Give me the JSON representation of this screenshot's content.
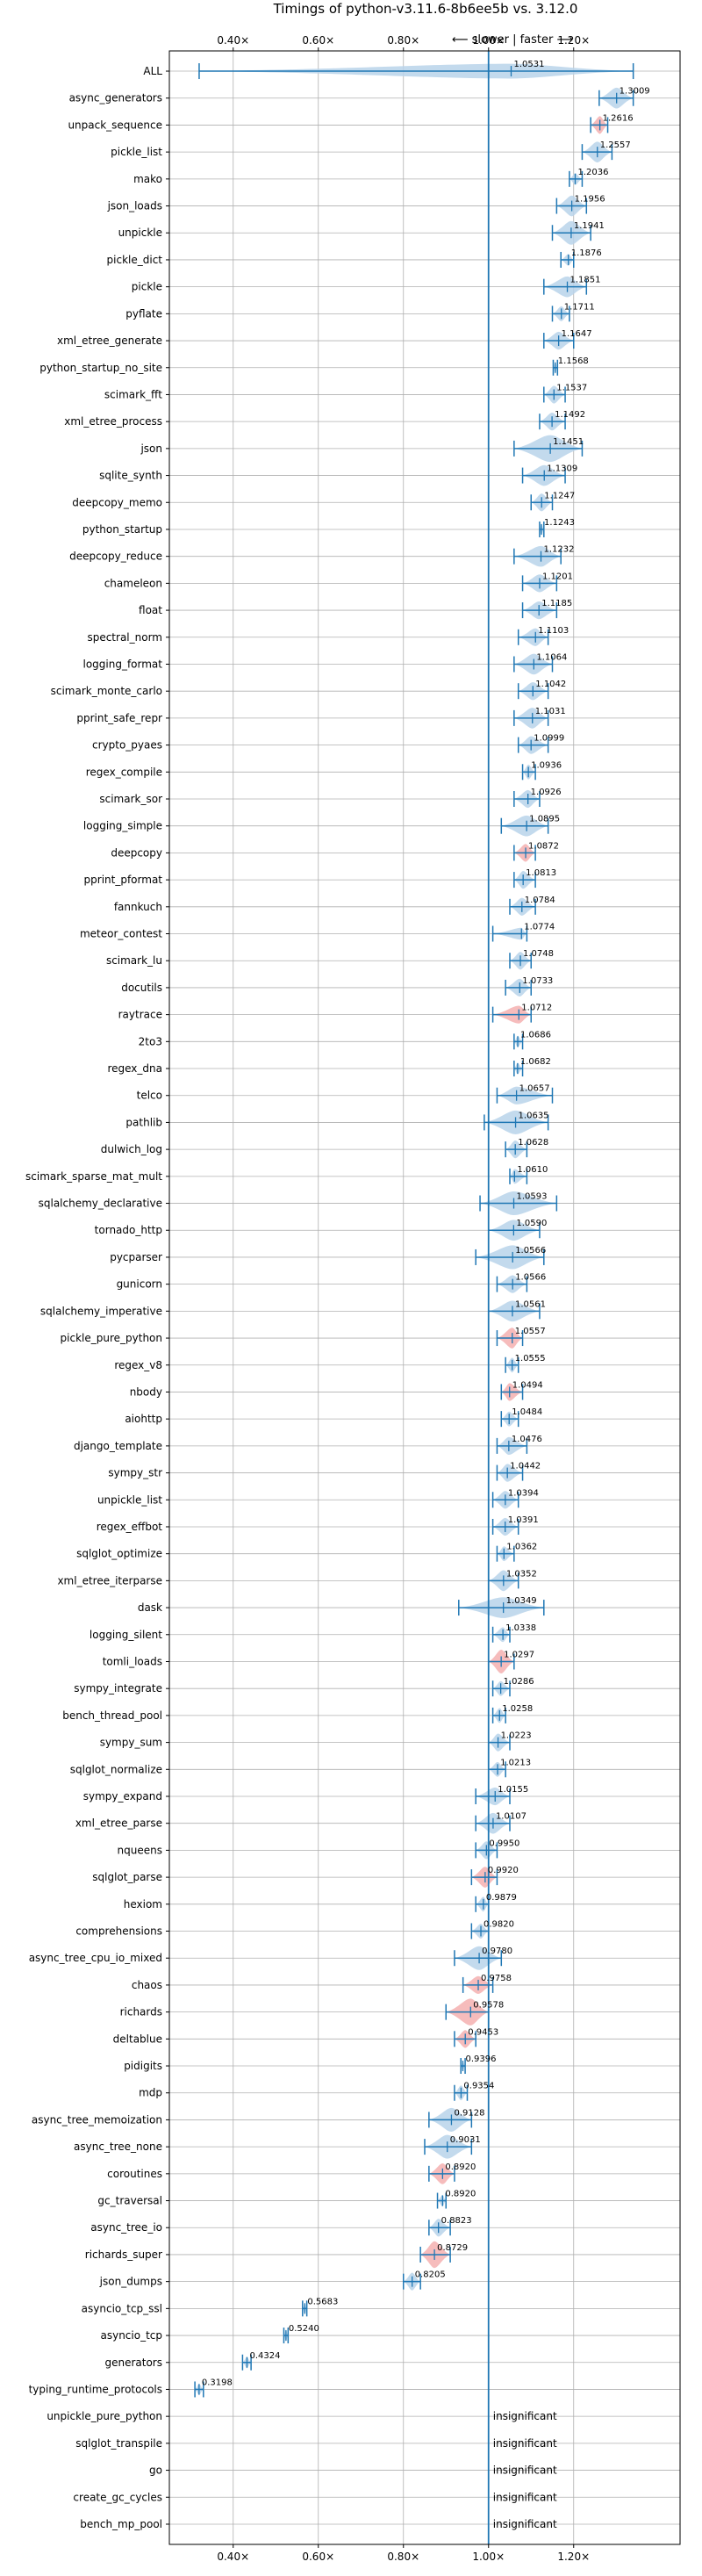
{
  "chart_data": {
    "type": "violin",
    "title": "Timings of python-v3.11.6-8b6ee5b vs. 3.12.0",
    "direction_note": "⟵ slower | faster ⟶",
    "xlim": [
      0.25,
      1.45
    ],
    "xticks": [
      0.4,
      0.6,
      0.8,
      1.0,
      1.2
    ],
    "xtick_labels": [
      "0.40×",
      "0.60×",
      "0.80×",
      "1.00×",
      "1.20×"
    ],
    "grid": true,
    "reference_line": 1.0,
    "colors": {
      "faster": "#b9d4ea",
      "slower": "#f4b0b0",
      "line": "#1f77b4",
      "grid": "#b0b0b0"
    },
    "insignificant_label": "insignificant",
    "benchmarks": [
      {
        "name": "ALL",
        "value": 1.0531,
        "label": "1.0531",
        "lo": 0.32,
        "hi": 1.34,
        "w": 0.5,
        "slower": false
      },
      {
        "name": "async_generators",
        "value": 1.3009,
        "label": "1.3009",
        "lo": 1.26,
        "hi": 1.34,
        "w": 0.7,
        "slower": false
      },
      {
        "name": "unpack_sequence",
        "value": 1.2616,
        "label": "1.2616",
        "lo": 1.24,
        "hi": 1.28,
        "w": 0.6,
        "slower": true
      },
      {
        "name": "pickle_list",
        "value": 1.2557,
        "label": "1.2557",
        "lo": 1.22,
        "hi": 1.29,
        "w": 0.7,
        "slower": false
      },
      {
        "name": "mako",
        "value": 1.2036,
        "label": "1.2036",
        "lo": 1.19,
        "hi": 1.22,
        "w": 0.4,
        "slower": false
      },
      {
        "name": "json_loads",
        "value": 1.1956,
        "label": "1.1956",
        "lo": 1.16,
        "hi": 1.23,
        "w": 0.7,
        "slower": false
      },
      {
        "name": "unpickle",
        "value": 1.1941,
        "label": "1.1941",
        "lo": 1.15,
        "hi": 1.24,
        "w": 0.8,
        "slower": false
      },
      {
        "name": "pickle_dict",
        "value": 1.1876,
        "label": "1.1876",
        "lo": 1.17,
        "hi": 1.2,
        "w": 0.4,
        "slower": false
      },
      {
        "name": "pickle",
        "value": 1.1851,
        "label": "1.1851",
        "lo": 1.13,
        "hi": 1.23,
        "w": 0.7,
        "slower": false
      },
      {
        "name": "pyflate",
        "value": 1.1711,
        "label": "1.1711",
        "lo": 1.15,
        "hi": 1.19,
        "w": 0.5,
        "slower": false
      },
      {
        "name": "xml_etree_generate",
        "value": 1.1647,
        "label": "1.1647",
        "lo": 1.13,
        "hi": 1.2,
        "w": 0.6,
        "slower": false
      },
      {
        "name": "python_startup_no_site",
        "value": 1.1568,
        "label": "1.1568",
        "lo": 1.152,
        "hi": 1.162,
        "w": 0.4,
        "slower": false
      },
      {
        "name": "scimark_fft",
        "value": 1.1537,
        "label": "1.1537",
        "lo": 1.13,
        "hi": 1.18,
        "w": 0.6,
        "slower": false
      },
      {
        "name": "xml_etree_process",
        "value": 1.1492,
        "label": "1.1492",
        "lo": 1.12,
        "hi": 1.18,
        "w": 0.6,
        "slower": false
      },
      {
        "name": "json",
        "value": 1.1451,
        "label": "1.1451",
        "lo": 1.06,
        "hi": 1.22,
        "w": 0.9,
        "slower": false
      },
      {
        "name": "sqlite_synth",
        "value": 1.1309,
        "label": "1.1309",
        "lo": 1.08,
        "hi": 1.18,
        "w": 0.7,
        "slower": false
      },
      {
        "name": "deepcopy_memo",
        "value": 1.1247,
        "label": "1.1247",
        "lo": 1.1,
        "hi": 1.15,
        "w": 0.6,
        "slower": false
      },
      {
        "name": "python_startup",
        "value": 1.1243,
        "label": "1.1243",
        "lo": 1.12,
        "hi": 1.13,
        "w": 0.4,
        "slower": false
      },
      {
        "name": "deepcopy_reduce",
        "value": 1.1232,
        "label": "1.1232",
        "lo": 1.06,
        "hi": 1.17,
        "w": 0.7,
        "slower": false
      },
      {
        "name": "chameleon",
        "value": 1.1201,
        "label": "1.1201",
        "lo": 1.08,
        "hi": 1.16,
        "w": 0.6,
        "slower": false
      },
      {
        "name": "float",
        "value": 1.1185,
        "label": "1.1185",
        "lo": 1.08,
        "hi": 1.16,
        "w": 0.6,
        "slower": false
      },
      {
        "name": "spectral_norm",
        "value": 1.1103,
        "label": "1.1103",
        "lo": 1.07,
        "hi": 1.14,
        "w": 0.6,
        "slower": false
      },
      {
        "name": "logging_format",
        "value": 1.1064,
        "label": "1.1064",
        "lo": 1.06,
        "hi": 1.15,
        "w": 0.7,
        "slower": false
      },
      {
        "name": "scimark_monte_carlo",
        "value": 1.1042,
        "label": "1.1042",
        "lo": 1.07,
        "hi": 1.14,
        "w": 0.6,
        "slower": false
      },
      {
        "name": "pprint_safe_repr",
        "value": 1.1031,
        "label": "1.1031",
        "lo": 1.06,
        "hi": 1.14,
        "w": 0.7,
        "slower": false
      },
      {
        "name": "crypto_pyaes",
        "value": 1.0999,
        "label": "1.0999",
        "lo": 1.07,
        "hi": 1.14,
        "w": 0.6,
        "slower": false
      },
      {
        "name": "regex_compile",
        "value": 1.0936,
        "label": "1.0936",
        "lo": 1.08,
        "hi": 1.11,
        "w": 0.5,
        "slower": false
      },
      {
        "name": "scimark_sor",
        "value": 1.0926,
        "label": "1.0926",
        "lo": 1.06,
        "hi": 1.12,
        "w": 0.6,
        "slower": false
      },
      {
        "name": "logging_simple",
        "value": 1.0895,
        "label": "1.0895",
        "lo": 1.03,
        "hi": 1.14,
        "w": 0.7,
        "slower": false
      },
      {
        "name": "deepcopy",
        "value": 1.0872,
        "label": "1.0872",
        "lo": 1.06,
        "hi": 1.11,
        "w": 0.6,
        "slower": true
      },
      {
        "name": "pprint_pformat",
        "value": 1.0813,
        "label": "1.0813",
        "lo": 1.06,
        "hi": 1.11,
        "w": 0.6,
        "slower": false
      },
      {
        "name": "fannkuch",
        "value": 1.0784,
        "label": "1.0784",
        "lo": 1.05,
        "hi": 1.11,
        "w": 0.6,
        "slower": false
      },
      {
        "name": "meteor_contest",
        "value": 1.0774,
        "label": "1.0774",
        "lo": 1.01,
        "hi": 1.09,
        "w": 0.4,
        "slower": false
      },
      {
        "name": "scimark_lu",
        "value": 1.0748,
        "label": "1.0748",
        "lo": 1.05,
        "hi": 1.1,
        "w": 0.6,
        "slower": false
      },
      {
        "name": "docutils",
        "value": 1.0733,
        "label": "1.0733",
        "lo": 1.04,
        "hi": 1.1,
        "w": 0.6,
        "slower": false
      },
      {
        "name": "raytrace",
        "value": 1.0712,
        "label": "1.0712",
        "lo": 1.01,
        "hi": 1.1,
        "w": 0.6,
        "slower": true
      },
      {
        "name": "2to3",
        "value": 1.0686,
        "label": "1.0686",
        "lo": 1.06,
        "hi": 1.08,
        "w": 0.4,
        "slower": false
      },
      {
        "name": "regex_dna",
        "value": 1.0682,
        "label": "1.0682",
        "lo": 1.06,
        "hi": 1.08,
        "w": 0.4,
        "slower": false
      },
      {
        "name": "telco",
        "value": 1.0657,
        "label": "1.0657",
        "lo": 1.02,
        "hi": 1.15,
        "w": 0.6,
        "slower": false
      },
      {
        "name": "pathlib",
        "value": 1.0635,
        "label": "1.0635",
        "lo": 0.99,
        "hi": 1.14,
        "w": 0.8,
        "slower": false
      },
      {
        "name": "dulwich_log",
        "value": 1.0628,
        "label": "1.0628",
        "lo": 1.04,
        "hi": 1.09,
        "w": 0.6,
        "slower": false
      },
      {
        "name": "scimark_sparse_mat_mult",
        "value": 1.061,
        "label": "1.0610",
        "lo": 1.05,
        "hi": 1.09,
        "w": 0.5,
        "slower": false
      },
      {
        "name": "sqlalchemy_declarative",
        "value": 1.0593,
        "label": "1.0593",
        "lo": 0.98,
        "hi": 1.16,
        "w": 0.8,
        "slower": false
      },
      {
        "name": "tornado_http",
        "value": 1.059,
        "label": "1.0590",
        "lo": 1.0,
        "hi": 1.12,
        "w": 0.7,
        "slower": false
      },
      {
        "name": "pycparser",
        "value": 1.0566,
        "label": "1.0566",
        "lo": 0.97,
        "hi": 1.13,
        "w": 0.8,
        "slower": false
      },
      {
        "name": "gunicorn",
        "value": 1.0566,
        "label": "1.0566",
        "lo": 1.02,
        "hi": 1.09,
        "w": 0.6,
        "slower": false
      },
      {
        "name": "sqlalchemy_imperative",
        "value": 1.0561,
        "label": "1.0561",
        "lo": 1.0,
        "hi": 1.12,
        "w": 0.7,
        "slower": false
      },
      {
        "name": "pickle_pure_python",
        "value": 1.0557,
        "label": "1.0557",
        "lo": 1.02,
        "hi": 1.08,
        "w": 0.7,
        "slower": true
      },
      {
        "name": "regex_v8",
        "value": 1.0555,
        "label": "1.0555",
        "lo": 1.04,
        "hi": 1.07,
        "w": 0.5,
        "slower": false
      },
      {
        "name": "nbody",
        "value": 1.0494,
        "label": "1.0494",
        "lo": 1.03,
        "hi": 1.08,
        "w": 0.6,
        "slower": true
      },
      {
        "name": "aiohttp",
        "value": 1.0484,
        "label": "1.0484",
        "lo": 1.03,
        "hi": 1.07,
        "w": 0.5,
        "slower": false
      },
      {
        "name": "django_template",
        "value": 1.0476,
        "label": "1.0476",
        "lo": 1.02,
        "hi": 1.09,
        "w": 0.6,
        "slower": false
      },
      {
        "name": "sympy_str",
        "value": 1.0442,
        "label": "1.0442",
        "lo": 1.02,
        "hi": 1.08,
        "w": 0.6,
        "slower": false
      },
      {
        "name": "unpickle_list",
        "value": 1.0394,
        "label": "1.0394",
        "lo": 1.01,
        "hi": 1.07,
        "w": 0.6,
        "slower": false
      },
      {
        "name": "regex_effbot",
        "value": 1.0391,
        "label": "1.0391",
        "lo": 1.01,
        "hi": 1.07,
        "w": 0.6,
        "slower": false
      },
      {
        "name": "sqlglot_optimize",
        "value": 1.0362,
        "label": "1.0362",
        "lo": 1.02,
        "hi": 1.06,
        "w": 0.5,
        "slower": false
      },
      {
        "name": "xml_etree_iterparse",
        "value": 1.0352,
        "label": "1.0352",
        "lo": 1.0,
        "hi": 1.07,
        "w": 0.7,
        "slower": false
      },
      {
        "name": "dask",
        "value": 1.0349,
        "label": "1.0349",
        "lo": 0.93,
        "hi": 1.13,
        "w": 0.7,
        "slower": false
      },
      {
        "name": "logging_silent",
        "value": 1.0338,
        "label": "1.0338",
        "lo": 1.01,
        "hi": 1.05,
        "w": 0.5,
        "slower": false
      },
      {
        "name": "tomli_loads",
        "value": 1.0297,
        "label": "1.0297",
        "lo": 1.0,
        "hi": 1.06,
        "w": 0.8,
        "slower": true
      },
      {
        "name": "sympy_integrate",
        "value": 1.0286,
        "label": "1.0286",
        "lo": 1.01,
        "hi": 1.05,
        "w": 0.5,
        "slower": false
      },
      {
        "name": "bench_thread_pool",
        "value": 1.0258,
        "label": "1.0258",
        "lo": 1.01,
        "hi": 1.04,
        "w": 0.5,
        "slower": false
      },
      {
        "name": "sympy_sum",
        "value": 1.0223,
        "label": "1.0223",
        "lo": 1.0,
        "hi": 1.05,
        "w": 0.6,
        "slower": false
      },
      {
        "name": "sqlglot_normalize",
        "value": 1.0213,
        "label": "1.0213",
        "lo": 1.0,
        "hi": 1.04,
        "w": 0.5,
        "slower": false
      },
      {
        "name": "sympy_expand",
        "value": 1.0155,
        "label": "1.0155",
        "lo": 0.97,
        "hi": 1.05,
        "w": 0.6,
        "slower": false
      },
      {
        "name": "xml_etree_parse",
        "value": 1.0107,
        "label": "1.0107",
        "lo": 0.97,
        "hi": 1.05,
        "w": 0.7,
        "slower": false
      },
      {
        "name": "nqueens",
        "value": 0.995,
        "label": "0.9950",
        "lo": 0.97,
        "hi": 1.02,
        "w": 0.6,
        "slower": false
      },
      {
        "name": "sqlglot_parse",
        "value": 0.992,
        "label": "0.9920",
        "lo": 0.96,
        "hi": 1.02,
        "w": 0.7,
        "slower": true
      },
      {
        "name": "hexiom",
        "value": 0.9879,
        "label": "0.9879",
        "lo": 0.97,
        "hi": 1.0,
        "w": 0.5,
        "slower": false
      },
      {
        "name": "comprehensions",
        "value": 0.982,
        "label": "0.9820",
        "lo": 0.96,
        "hi": 1.0,
        "w": 0.5,
        "slower": false
      },
      {
        "name": "async_tree_cpu_io_mixed",
        "value": 0.978,
        "label": "0.9780",
        "lo": 0.92,
        "hi": 1.03,
        "w": 0.8,
        "slower": false
      },
      {
        "name": "chaos",
        "value": 0.9758,
        "label": "0.9758",
        "lo": 0.94,
        "hi": 1.01,
        "w": 0.6,
        "slower": true
      },
      {
        "name": "richards",
        "value": 0.9578,
        "label": "0.9578",
        "lo": 0.9,
        "hi": 1.0,
        "w": 0.9,
        "slower": true
      },
      {
        "name": "deltablue",
        "value": 0.9453,
        "label": "0.9453",
        "lo": 0.92,
        "hi": 0.97,
        "w": 0.6,
        "slower": true
      },
      {
        "name": "pidigits",
        "value": 0.9396,
        "label": "0.9396",
        "lo": 0.935,
        "hi": 0.945,
        "w": 0.3,
        "slower": false
      },
      {
        "name": "mdp",
        "value": 0.9354,
        "label": "0.9354",
        "lo": 0.92,
        "hi": 0.95,
        "w": 0.5,
        "slower": false
      },
      {
        "name": "async_tree_memoization",
        "value": 0.9128,
        "label": "0.9128",
        "lo": 0.86,
        "hi": 0.96,
        "w": 0.8,
        "slower": false
      },
      {
        "name": "async_tree_none",
        "value": 0.9031,
        "label": "0.9031",
        "lo": 0.85,
        "hi": 0.96,
        "w": 0.8,
        "slower": false
      },
      {
        "name": "coroutines",
        "value": 0.892,
        "label": "0.8920",
        "lo": 0.86,
        "hi": 0.92,
        "w": 0.7,
        "slower": true
      },
      {
        "name": "gc_traversal",
        "value": 0.892,
        "label": "0.8920",
        "lo": 0.88,
        "hi": 0.9,
        "w": 0.4,
        "slower": false
      },
      {
        "name": "async_tree_io",
        "value": 0.8823,
        "label": "0.8823",
        "lo": 0.86,
        "hi": 0.91,
        "w": 0.6,
        "slower": false
      },
      {
        "name": "richards_super",
        "value": 0.8729,
        "label": "0.8729",
        "lo": 0.84,
        "hi": 0.91,
        "w": 0.9,
        "slower": true
      },
      {
        "name": "json_dumps",
        "value": 0.8205,
        "label": "0.8205",
        "lo": 0.8,
        "hi": 0.84,
        "w": 0.6,
        "slower": false
      },
      {
        "name": "asyncio_tcp_ssl",
        "value": 0.5683,
        "label": "0.5683",
        "lo": 0.563,
        "hi": 0.573,
        "w": 0.4,
        "slower": false
      },
      {
        "name": "asyncio_tcp",
        "value": 0.524,
        "label": "0.5240",
        "lo": 0.519,
        "hi": 0.529,
        "w": 0.4,
        "slower": false
      },
      {
        "name": "generators",
        "value": 0.4324,
        "label": "0.4324",
        "lo": 0.422,
        "hi": 0.442,
        "w": 0.4,
        "slower": false
      },
      {
        "name": "typing_runtime_protocols",
        "value": 0.3198,
        "label": "0.3198",
        "lo": 0.31,
        "hi": 0.33,
        "w": 0.4,
        "slower": false
      },
      {
        "name": "unpickle_pure_python",
        "value": null,
        "label": "",
        "insignificant": true
      },
      {
        "name": "sqlglot_transpile",
        "value": null,
        "label": "",
        "insignificant": true
      },
      {
        "name": "go",
        "value": null,
        "label": "",
        "insignificant": true
      },
      {
        "name": "create_gc_cycles",
        "value": null,
        "label": "",
        "insignificant": true
      },
      {
        "name": "bench_mp_pool",
        "value": null,
        "label": "",
        "insignificant": true
      }
    ]
  }
}
